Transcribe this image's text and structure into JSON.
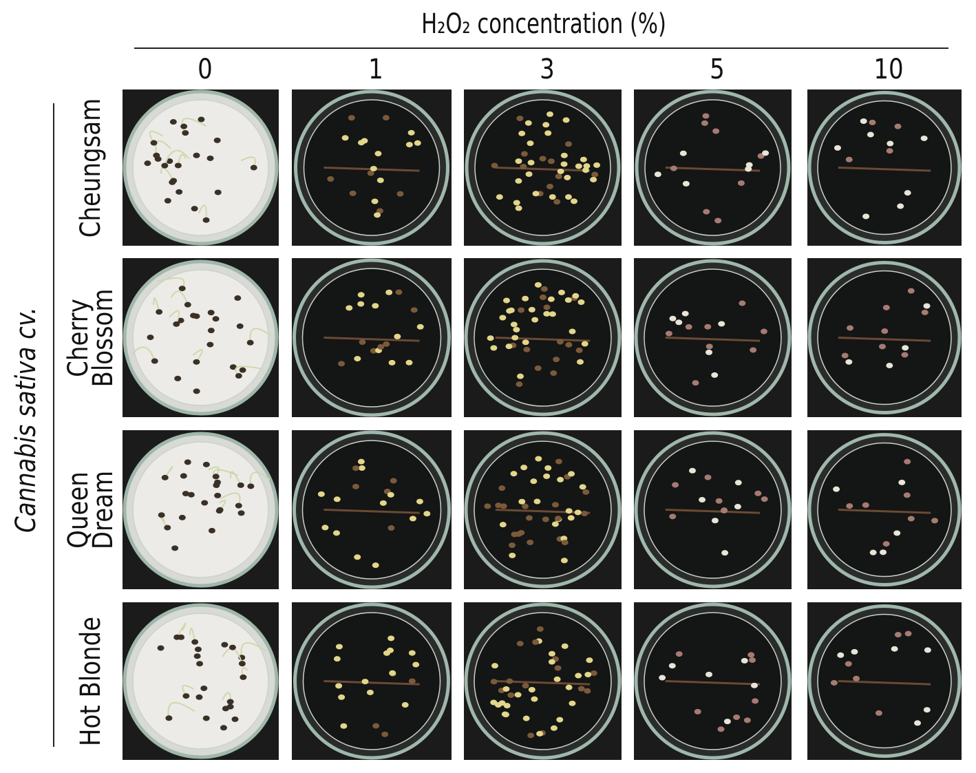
{
  "header": {
    "title": "H₂O₂ concentration (%)",
    "columns": [
      "0",
      "1",
      "3",
      "5",
      "10"
    ]
  },
  "side_label": "Cannabis sativa cv.",
  "rows": [
    {
      "lines": [
        "Cheungsam"
      ]
    },
    {
      "lines": [
        "Cherry",
        "Blossom"
      ]
    },
    {
      "lines": [
        "Queen",
        "Dream"
      ]
    },
    {
      "lines": [
        "Hot Blonde"
      ]
    }
  ]
}
